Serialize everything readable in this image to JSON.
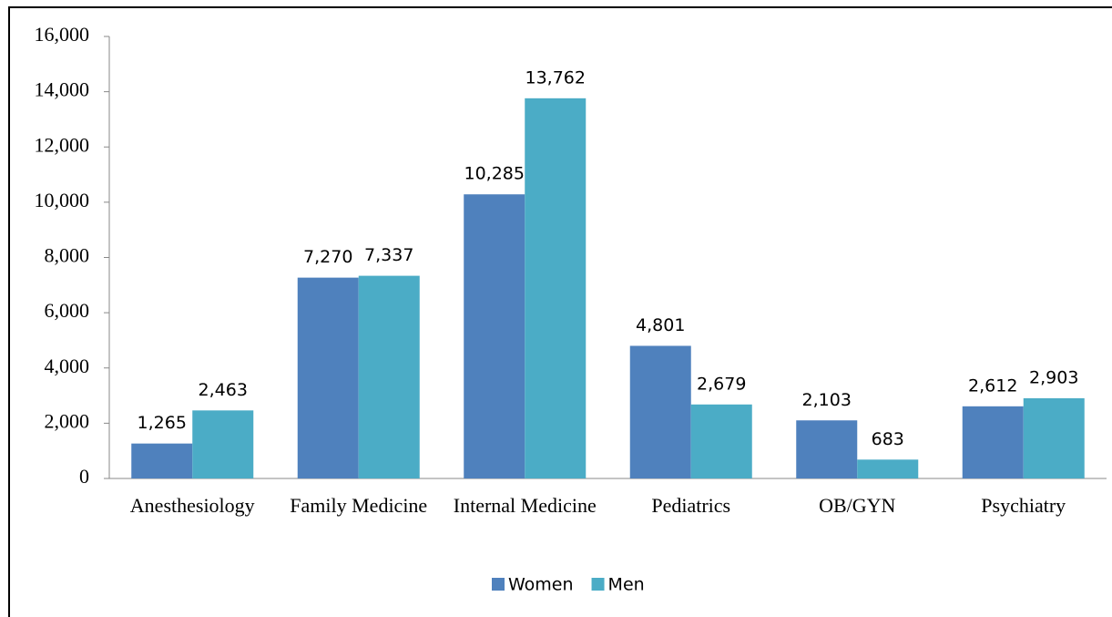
{
  "chart_data": {
    "type": "bar",
    "categories": [
      "Anesthesiology",
      "Family Medicine",
      "Internal Medicine",
      "Pediatrics",
      "OB/GYN",
      "Psychiatry"
    ],
    "series": [
      {
        "name": "Women",
        "color": "#4f81bd",
        "values": [
          1265,
          7270,
          10285,
          4801,
          2103,
          2612
        ],
        "value_labels": [
          "1,265",
          "7,270",
          "10,285",
          "4,801",
          "2,103",
          "2,612"
        ]
      },
      {
        "name": "Men",
        "color": "#4bacc6",
        "values": [
          2463,
          7337,
          13762,
          2679,
          683,
          2903
        ],
        "value_labels": [
          "2,463",
          "7,337",
          "13,762",
          "2,679",
          "683",
          "2,903"
        ]
      }
    ],
    "ylim": [
      0,
      16000
    ],
    "yticks": [
      0,
      {
        "value": 2000,
        "label": "2,000"
      },
      {
        "value": 4000,
        "label": "4,000"
      },
      {
        "value": 6000,
        "label": "6,000"
      },
      {
        "value": 8000,
        "label": "8,000"
      },
      {
        "value": 10000,
        "label": "10,000"
      },
      {
        "value": 12000,
        "label": "12,000"
      },
      {
        "value": 14000,
        "label": "14,000"
      },
      {
        "value": 16000,
        "label": "16,000"
      }
    ],
    "grid": false,
    "legend": "bottom"
  }
}
